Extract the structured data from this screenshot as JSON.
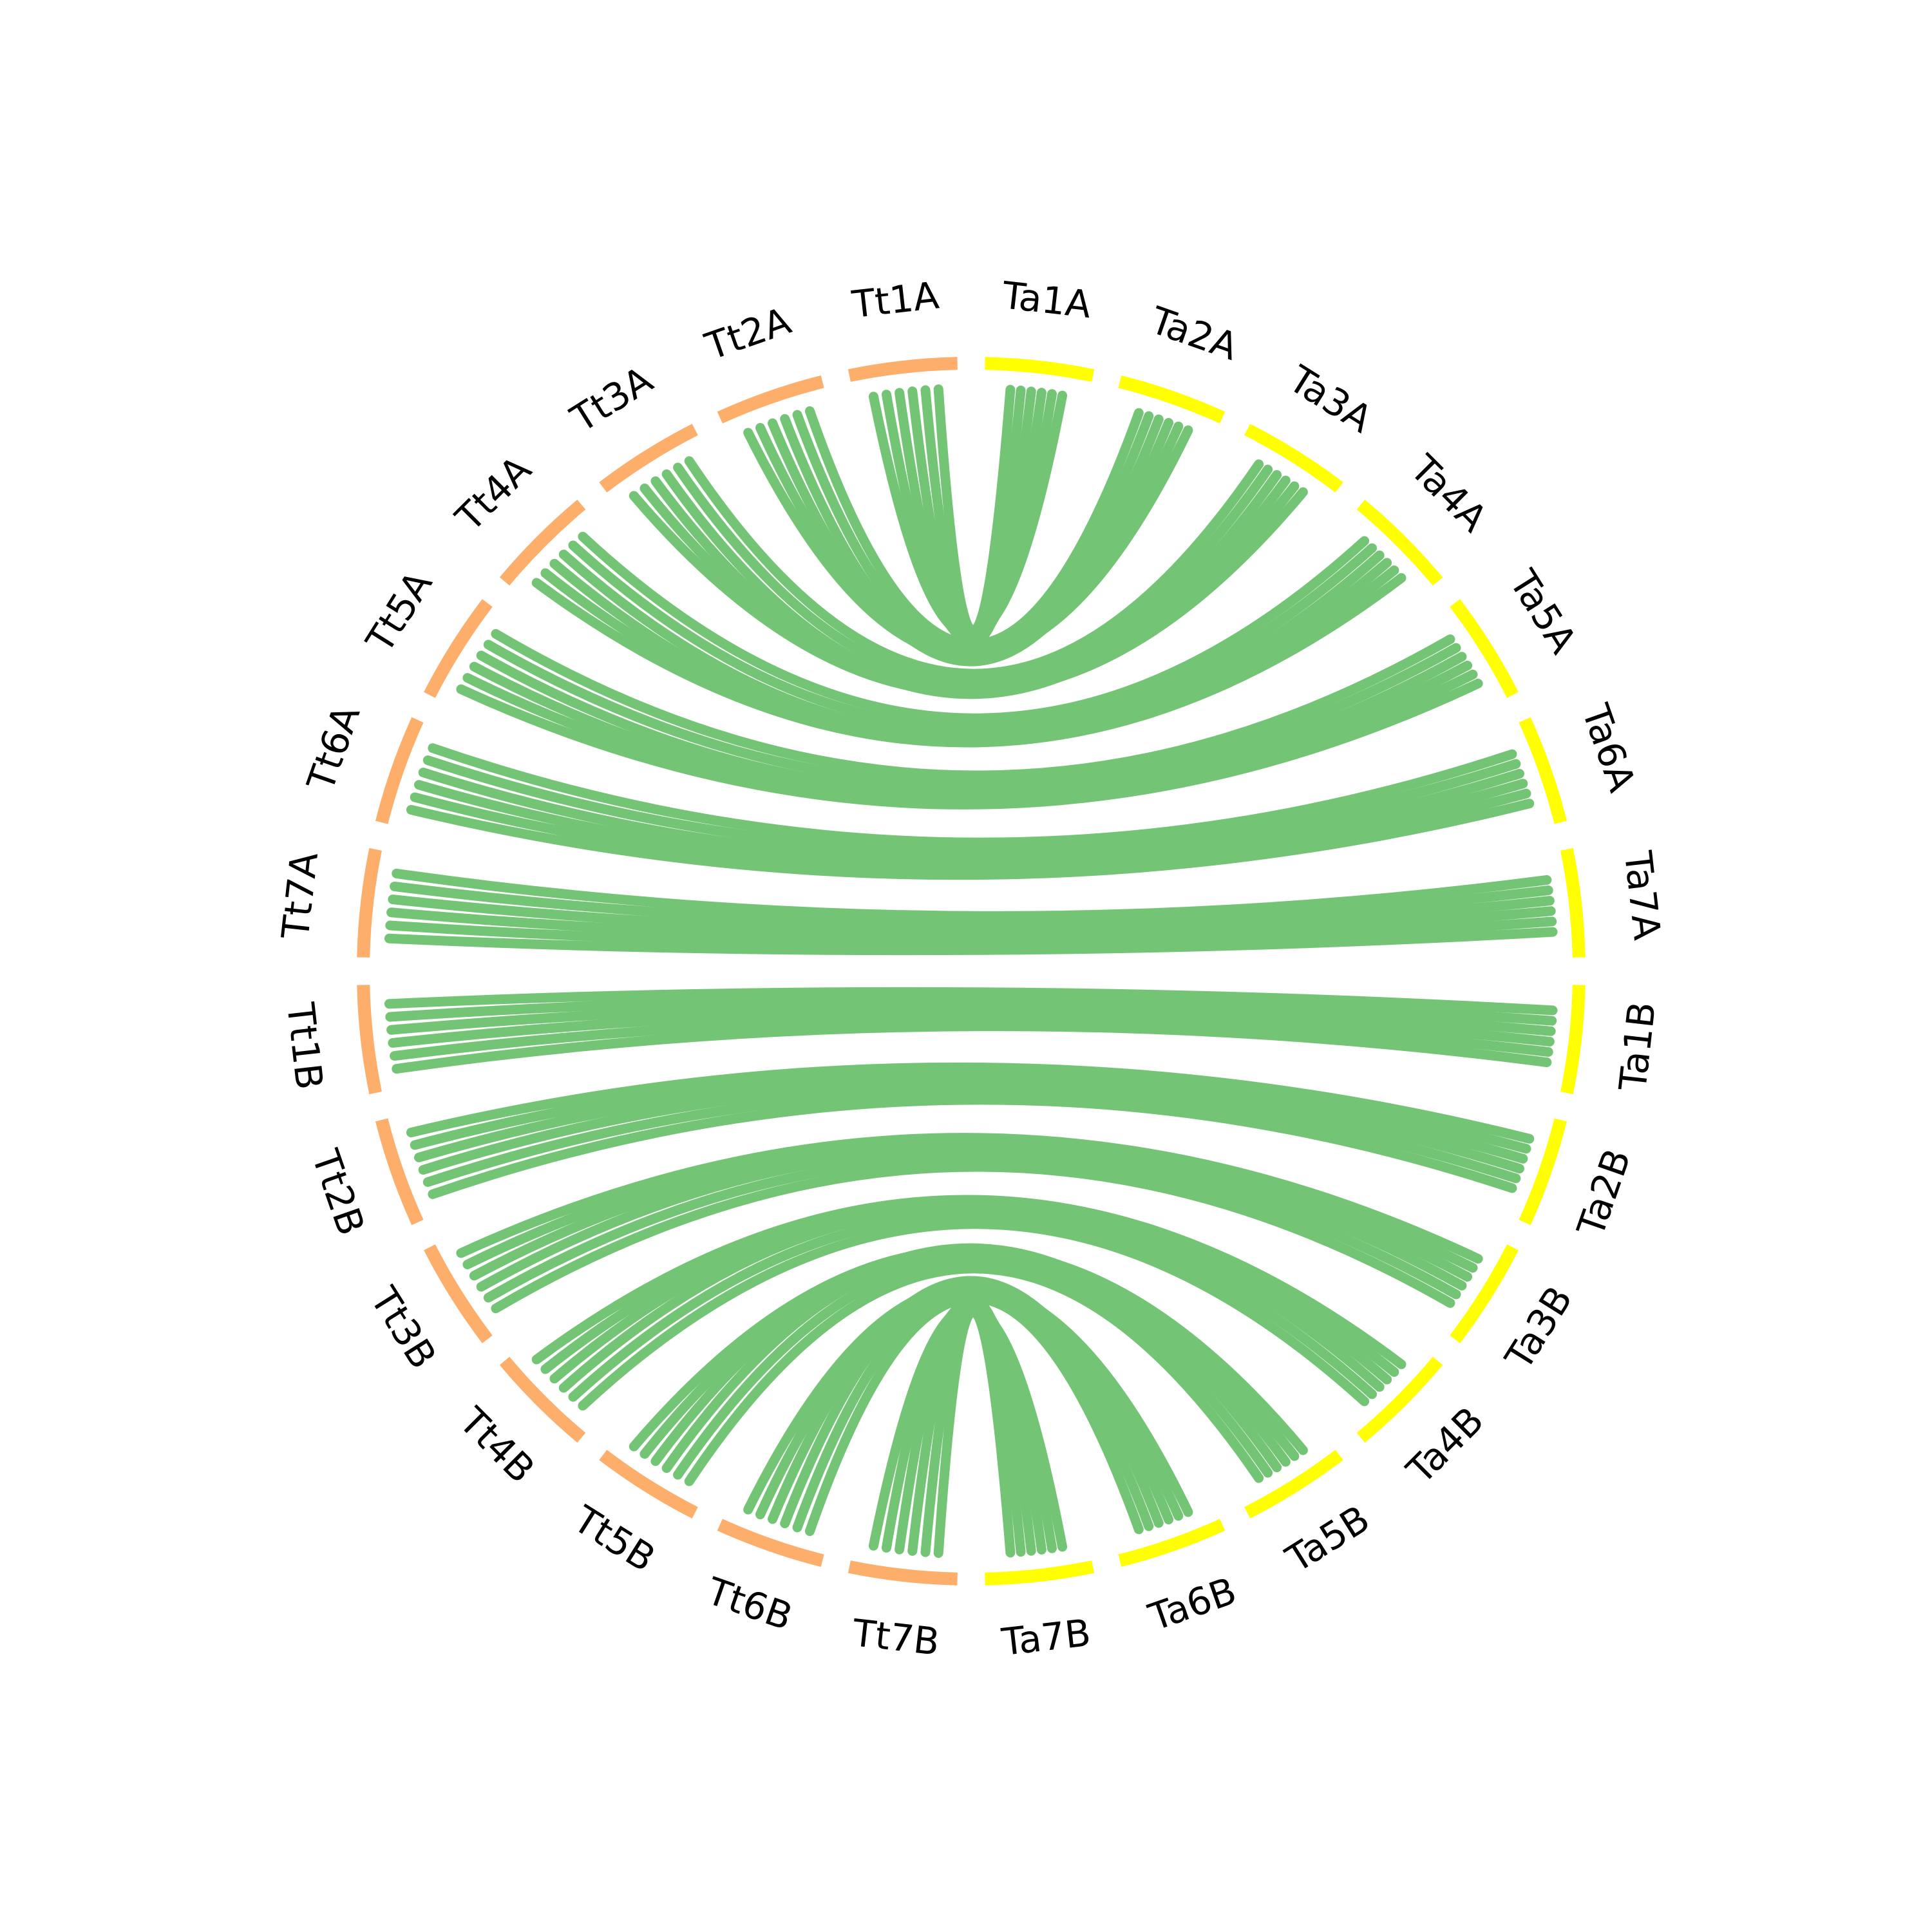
{
  "chart_data": {
    "type": "chord",
    "groups": [
      {
        "color": "#fdae6b",
        "labels": [
          "Tt1A",
          "Tt2A",
          "Tt3A",
          "Tt4A",
          "Tt5A",
          "Tt6A",
          "Tt7A",
          "Tt1B",
          "Tt2B",
          "Tt3B",
          "Tt4B",
          "Tt5B",
          "Tt6B",
          "Tt7B"
        ]
      },
      {
        "color": "#ffff00",
        "labels": [
          "Ta1A",
          "Ta2A",
          "Ta3A",
          "Ta4A",
          "Ta5A",
          "Ta6A",
          "Ta7A",
          "Ta1B",
          "Ta2B",
          "Ta3B",
          "Ta4B",
          "Ta5B",
          "Ta6B",
          "Ta7B"
        ]
      }
    ],
    "link_color": "#74c476"
  }
}
